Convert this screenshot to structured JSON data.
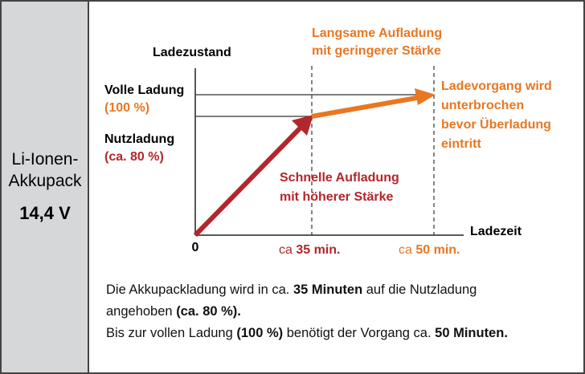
{
  "sidebar": {
    "product_lines": [
      "Li-Ionen-",
      "Akkupack"
    ],
    "voltage": "14,4 V"
  },
  "diagram": {
    "y_axis_label": "Ladezustand",
    "x_axis_label": "Ladezeit",
    "origin": "0",
    "levels": [
      {
        "label": "Volle Ladung",
        "value": "(100 %)"
      },
      {
        "label": "Nutzladung",
        "value": "(ca. 80 %)"
      }
    ],
    "x_markers": [
      {
        "prefix": "ca",
        "value": "35 min."
      },
      {
        "prefix": "ca",
        "value": "50 min."
      }
    ],
    "slow_charge": [
      "Langsame Aufladung",
      "mit geringerer Stärke"
    ],
    "fast_charge": [
      "Schnelle Aufladung",
      "mit höherer Stärke"
    ],
    "stop_note": [
      "Ladevorgang wird",
      "unterbrochen",
      "bevor Überladung",
      "eintritt"
    ]
  },
  "caption": {
    "line1": [
      "Die Akkupackladung wird in ca.",
      "35 Minuten",
      "auf die Nutzladung"
    ],
    "line2": [
      "angehoben",
      "(ca. 80 %)."
    ],
    "line3": [
      "Bis zur vollen Ladung",
      "(100 %)",
      "benötigt der Vorgang ca.",
      "50 Minuten."
    ]
  }
}
